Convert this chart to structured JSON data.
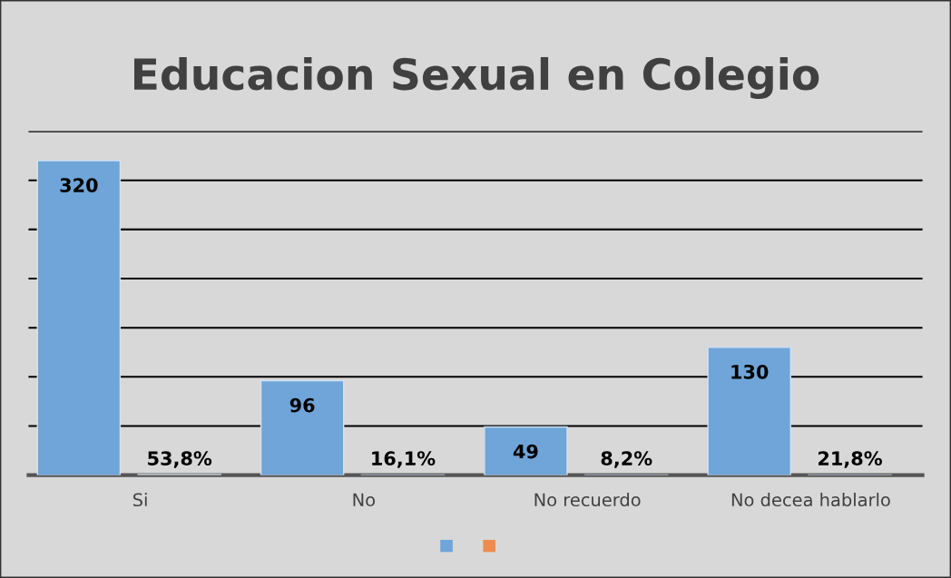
{
  "chart_data": {
    "type": "bar",
    "title": "Educacion Sexual en Colegio",
    "categories": [
      "Si",
      "No",
      "No recuerdo",
      "No decea hablarlo"
    ],
    "series": [
      {
        "color": "#6fa5d8",
        "values": [
          320,
          96,
          49,
          130
        ],
        "value_labels": [
          "320",
          "96",
          "49",
          "130"
        ]
      },
      {
        "color": "#ed8c4e",
        "values": [
          0.538,
          0.161,
          0.082,
          0.218
        ],
        "value_labels": [
          "53,8%",
          "16,1%",
          "8,2%",
          "21,8%"
        ]
      }
    ],
    "ylim": [
      0,
      350
    ],
    "yticks": [
      {
        "value": 0,
        "label": null
      },
      {
        "value": 50,
        "label": null
      },
      {
        "value": 100,
        "label": null
      },
      {
        "value": 150,
        "label": null
      },
      {
        "value": 200,
        "label": null
      },
      {
        "value": 250,
        "label": null
      },
      {
        "value": 300,
        "label": null
      },
      {
        "value": 350,
        "label": null
      }
    ],
    "grid": "y",
    "tick_labels": "x"
  }
}
